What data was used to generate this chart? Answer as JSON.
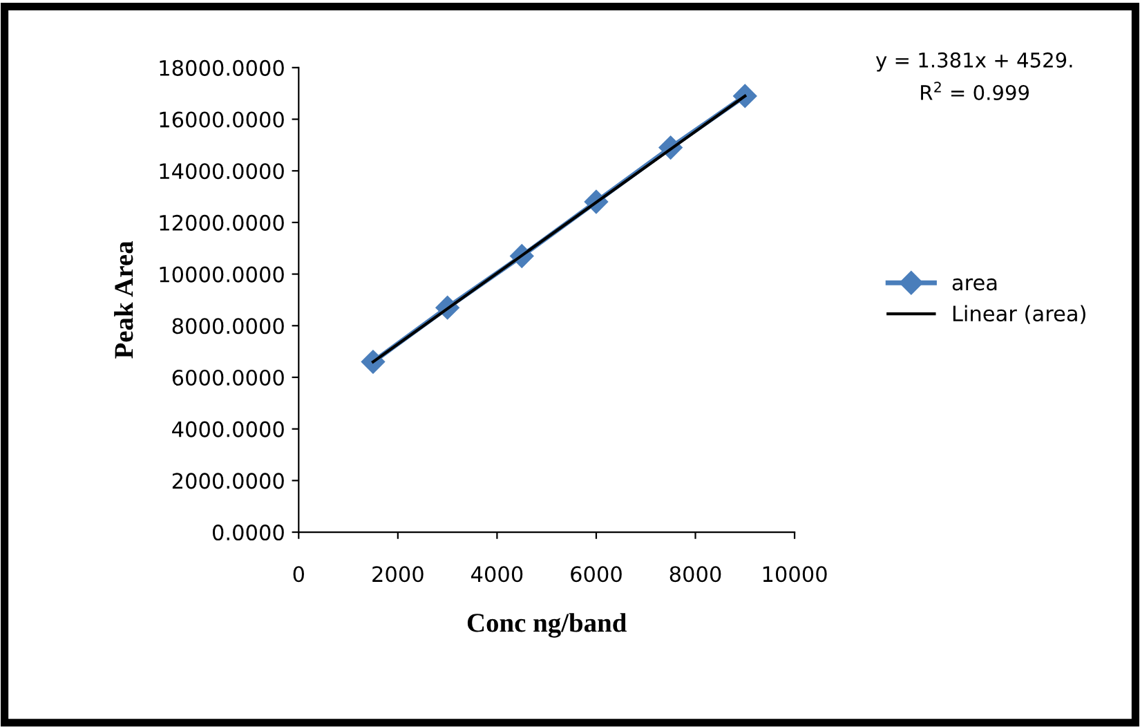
{
  "chart_data": {
    "type": "line",
    "xlabel": "Conc ng/band",
    "ylabel": "Peak Area",
    "annotations": [
      "y = 1.381x + 4529.",
      "R$^{2}$ = 0.999"
    ],
    "x": [
      1500,
      3000,
      4500,
      6000,
      7500,
      9000
    ],
    "series": [
      {
        "name": "area",
        "color": "#4a7ebb",
        "marker": "diamond",
        "values": [
          6600,
          8700,
          10700,
          12800,
          14900,
          16900
        ]
      },
      {
        "name": "Linear (area)",
        "color": "#000000",
        "marker": "none",
        "x": [
          1500,
          9000
        ],
        "values": [
          6600,
          16900
        ]
      }
    ],
    "xlim": [
      0,
      10000
    ],
    "xticks": [
      0,
      2000,
      4000,
      6000,
      8000,
      10000
    ],
    "ylim": [
      0,
      18000
    ],
    "yticks": [
      {
        "value": 0,
        "label": "0.0000"
      },
      {
        "value": 2000,
        "label": "2000.0000"
      },
      {
        "value": 4000,
        "label": "4000.0000"
      },
      {
        "value": 6000,
        "label": "6000.0000"
      },
      {
        "value": 8000,
        "label": "8000.0000"
      },
      {
        "value": 10000,
        "label": "10000.0000"
      },
      {
        "value": 12000,
        "label": "12000.0000"
      },
      {
        "value": 14000,
        "label": "14000.0000"
      },
      {
        "value": 16000,
        "label": "16000.0000"
      },
      {
        "value": 18000,
        "label": "18000.0000"
      }
    ],
    "grid": false,
    "legend": "right"
  }
}
